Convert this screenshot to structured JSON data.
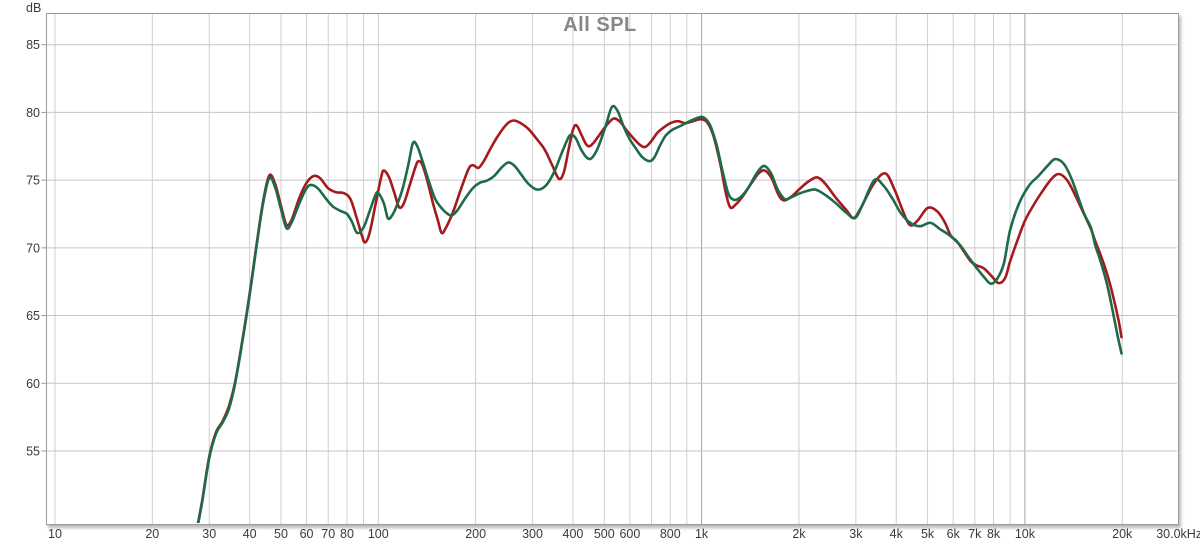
{
  "page": {
    "background": "#ffffff",
    "text_color": "#3a3a3a",
    "title_color": "#878787",
    "border_color": "#9b9b9b"
  },
  "chart_data": {
    "type": "line",
    "title": "All SPL",
    "ylabel": "dB",
    "grid": "on",
    "legend": "none",
    "x_axis": {
      "scale": "log",
      "unit": "Hz",
      "range_hz": [
        9.4,
        30000
      ],
      "labeled_ticks": [
        [
          10,
          "10"
        ],
        [
          20,
          "20"
        ],
        [
          30,
          "30"
        ],
        [
          40,
          "40"
        ],
        [
          50,
          "50"
        ],
        [
          60,
          "60"
        ],
        [
          70,
          "70"
        ],
        [
          80,
          "80"
        ],
        [
          100,
          "100"
        ],
        [
          200,
          "200"
        ],
        [
          300,
          "300"
        ],
        [
          400,
          "400"
        ],
        [
          500,
          "500"
        ],
        [
          600,
          "600"
        ],
        [
          800,
          "800"
        ],
        [
          1000,
          "1k"
        ],
        [
          2000,
          "2k"
        ],
        [
          3000,
          "3k"
        ],
        [
          4000,
          "4k"
        ],
        [
          5000,
          "5k"
        ],
        [
          6000,
          "6k"
        ],
        [
          7000,
          "7k"
        ],
        [
          8000,
          "8k"
        ],
        [
          10000,
          "10k"
        ],
        [
          20000,
          "20k"
        ],
        [
          30000,
          "30.0kHz"
        ]
      ],
      "unlabeled_gridlines": [
        90,
        700,
        900,
        9000
      ],
      "emphasized_gridlines": [
        1000,
        10000
      ],
      "grid_color": "#cfcfcf",
      "emphasized_grid_color": "#a3a3a3"
    },
    "y_axis": {
      "unit": "dB",
      "ticks": [
        85,
        80,
        75,
        70,
        65,
        60,
        55
      ],
      "step": 5,
      "range_db": [
        49.6,
        87.3
      ],
      "grid_color": "#c6c6c6"
    },
    "series": [
      {
        "id": "red-trace",
        "color": "#a51a1e",
        "points": [
          [
            27,
            48.3
          ],
          [
            28.5,
            51.3
          ],
          [
            30,
            54.6
          ],
          [
            31.5,
            56.4
          ],
          [
            33,
            57.2
          ],
          [
            34.5,
            58.3
          ],
          [
            36,
            60.0
          ],
          [
            38,
            63.2
          ],
          [
            40,
            66.6
          ],
          [
            42,
            70.2
          ],
          [
            44,
            73.4
          ],
          [
            46,
            75.35
          ],
          [
            48,
            74.7
          ],
          [
            50,
            73.1
          ],
          [
            52,
            71.7
          ],
          [
            54,
            72.1
          ],
          [
            57,
            73.7
          ],
          [
            60,
            74.8
          ],
          [
            63,
            75.3
          ],
          [
            66,
            75.15
          ],
          [
            70,
            74.4
          ],
          [
            74,
            74.1
          ],
          [
            78,
            74.05
          ],
          [
            82,
            73.6
          ],
          [
            86,
            72.1
          ],
          [
            89,
            70.9
          ],
          [
            91,
            70.4
          ],
          [
            94,
            71.1
          ],
          [
            98,
            73.2
          ],
          [
            102,
            75.2
          ],
          [
            104,
            75.7
          ],
          [
            108,
            75.2
          ],
          [
            112,
            74.1
          ],
          [
            116,
            73.0
          ],
          [
            120,
            73.3
          ],
          [
            125,
            74.6
          ],
          [
            130,
            75.9
          ],
          [
            133,
            76.4
          ],
          [
            137,
            76.1
          ],
          [
            142,
            74.9
          ],
          [
            148,
            73.2
          ],
          [
            153,
            72.0
          ],
          [
            157,
            71.1
          ],
          [
            162,
            71.5
          ],
          [
            170,
            72.6
          ],
          [
            180,
            74.3
          ],
          [
            190,
            75.8
          ],
          [
            196,
            76.1
          ],
          [
            204,
            75.9
          ],
          [
            212,
            76.4
          ],
          [
            222,
            77.3
          ],
          [
            235,
            78.3
          ],
          [
            250,
            79.15
          ],
          [
            262,
            79.4
          ],
          [
            276,
            79.2
          ],
          [
            292,
            78.75
          ],
          [
            310,
            78.0
          ],
          [
            328,
            77.2
          ],
          [
            345,
            76.1
          ],
          [
            362,
            75.1
          ],
          [
            375,
            75.6
          ],
          [
            388,
            77.3
          ],
          [
            400,
            78.7
          ],
          [
            410,
            79.05
          ],
          [
            424,
            78.4
          ],
          [
            438,
            77.7
          ],
          [
            450,
            77.5
          ],
          [
            465,
            77.8
          ],
          [
            485,
            78.4
          ],
          [
            510,
            79.1
          ],
          [
            535,
            79.55
          ],
          [
            560,
            79.3
          ],
          [
            585,
            78.7
          ],
          [
            615,
            78.1
          ],
          [
            645,
            77.6
          ],
          [
            670,
            77.45
          ],
          [
            700,
            77.9
          ],
          [
            730,
            78.5
          ],
          [
            765,
            78.9
          ],
          [
            800,
            79.2
          ],
          [
            845,
            79.35
          ],
          [
            890,
            79.2
          ],
          [
            940,
            79.35
          ],
          [
            1000,
            79.5
          ],
          [
            1045,
            79.2
          ],
          [
            1090,
            78.2
          ],
          [
            1140,
            76.3
          ],
          [
            1185,
            74.2
          ],
          [
            1225,
            73.0
          ],
          [
            1275,
            73.2
          ],
          [
            1340,
            73.8
          ],
          [
            1420,
            74.7
          ],
          [
            1500,
            75.5
          ],
          [
            1570,
            75.7
          ],
          [
            1650,
            75.1
          ],
          [
            1730,
            73.9
          ],
          [
            1800,
            73.5
          ],
          [
            1900,
            73.8
          ],
          [
            2000,
            74.3
          ],
          [
            2140,
            74.9
          ],
          [
            2280,
            75.2
          ],
          [
            2420,
            74.7
          ],
          [
            2600,
            73.7
          ],
          [
            2800,
            72.8
          ],
          [
            2950,
            72.2
          ],
          [
            3100,
            72.9
          ],
          [
            3400,
            74.7
          ],
          [
            3700,
            75.5
          ],
          [
            3950,
            74.3
          ],
          [
            4150,
            73.0
          ],
          [
            4400,
            71.7
          ],
          [
            4650,
            72.0
          ],
          [
            5000,
            72.95
          ],
          [
            5350,
            72.7
          ],
          [
            5650,
            71.9
          ],
          [
            5900,
            70.9
          ],
          [
            6150,
            70.5
          ],
          [
            6450,
            69.8
          ],
          [
            6800,
            69.0
          ],
          [
            7100,
            68.7
          ],
          [
            7450,
            68.5
          ],
          [
            7900,
            67.9
          ],
          [
            8300,
            67.4
          ],
          [
            8700,
            67.8
          ],
          [
            9000,
            69.0
          ],
          [
            9500,
            70.6
          ],
          [
            10000,
            72.0
          ],
          [
            10600,
            73.1
          ],
          [
            11200,
            74.0
          ],
          [
            12000,
            75.0
          ],
          [
            12700,
            75.45
          ],
          [
            13500,
            75.0
          ],
          [
            14300,
            73.9
          ],
          [
            15300,
            72.4
          ],
          [
            16000,
            71.4
          ],
          [
            16500,
            70.5
          ],
          [
            17200,
            69.4
          ],
          [
            18000,
            68.0
          ],
          [
            18800,
            66.3
          ],
          [
            19500,
            64.6
          ],
          [
            19900,
            63.4
          ]
        ]
      },
      {
        "id": "green-trace",
        "color": "#1e6b4a",
        "points": [
          [
            27,
            48.2
          ],
          [
            28.5,
            51.2
          ],
          [
            30,
            54.5
          ],
          [
            31.5,
            56.3
          ],
          [
            33,
            57.1
          ],
          [
            34.5,
            58.1
          ],
          [
            36,
            59.9
          ],
          [
            38,
            63.1
          ],
          [
            40,
            66.5
          ],
          [
            42,
            70.1
          ],
          [
            44,
            73.25
          ],
          [
            46,
            75.15
          ],
          [
            48,
            74.45
          ],
          [
            50,
            72.85
          ],
          [
            52,
            71.45
          ],
          [
            54,
            71.9
          ],
          [
            57,
            73.3
          ],
          [
            60,
            74.4
          ],
          [
            62,
            74.65
          ],
          [
            65,
            74.4
          ],
          [
            68,
            73.8
          ],
          [
            72,
            73.1
          ],
          [
            76,
            72.75
          ],
          [
            80,
            72.5
          ],
          [
            83,
            71.9
          ],
          [
            86,
            71.1
          ],
          [
            90,
            71.5
          ],
          [
            94,
            72.7
          ],
          [
            98,
            73.9
          ],
          [
            100,
            74.05
          ],
          [
            104,
            73.3
          ],
          [
            107,
            72.2
          ],
          [
            110,
            72.35
          ],
          [
            114,
            73.1
          ],
          [
            119,
            74.4
          ],
          [
            124,
            76.2
          ],
          [
            128,
            77.75
          ],
          [
            132,
            77.5
          ],
          [
            137,
            76.4
          ],
          [
            143,
            75.0
          ],
          [
            150,
            73.6
          ],
          [
            158,
            72.85
          ],
          [
            164,
            72.5
          ],
          [
            169,
            72.4
          ],
          [
            176,
            72.8
          ],
          [
            185,
            73.6
          ],
          [
            196,
            74.4
          ],
          [
            206,
            74.8
          ],
          [
            216,
            74.95
          ],
          [
            228,
            75.3
          ],
          [
            240,
            75.9
          ],
          [
            252,
            76.3
          ],
          [
            264,
            76.05
          ],
          [
            278,
            75.35
          ],
          [
            292,
            74.7
          ],
          [
            310,
            74.3
          ],
          [
            330,
            74.6
          ],
          [
            350,
            75.6
          ],
          [
            368,
            76.9
          ],
          [
            383,
            77.9
          ],
          [
            394,
            78.35
          ],
          [
            408,
            78.1
          ],
          [
            425,
            77.2
          ],
          [
            445,
            76.6
          ],
          [
            460,
            76.7
          ],
          [
            480,
            77.5
          ],
          [
            505,
            79.0
          ],
          [
            528,
            80.4
          ],
          [
            550,
            80.1
          ],
          [
            575,
            78.9
          ],
          [
            600,
            78.0
          ],
          [
            628,
            77.3
          ],
          [
            655,
            76.7
          ],
          [
            690,
            76.4
          ],
          [
            715,
            76.7
          ],
          [
            745,
            77.6
          ],
          [
            775,
            78.3
          ],
          [
            810,
            78.7
          ],
          [
            860,
            79.0
          ],
          [
            910,
            79.3
          ],
          [
            960,
            79.55
          ],
          [
            1010,
            79.65
          ],
          [
            1060,
            79.1
          ],
          [
            1110,
            77.7
          ],
          [
            1160,
            75.7
          ],
          [
            1210,
            74.0
          ],
          [
            1260,
            73.55
          ],
          [
            1320,
            73.75
          ],
          [
            1400,
            74.5
          ],
          [
            1480,
            75.5
          ],
          [
            1560,
            76.05
          ],
          [
            1640,
            75.5
          ],
          [
            1720,
            74.3
          ],
          [
            1810,
            73.6
          ],
          [
            1900,
            73.75
          ],
          [
            2000,
            74.0
          ],
          [
            2120,
            74.2
          ],
          [
            2250,
            74.3
          ],
          [
            2400,
            73.95
          ],
          [
            2600,
            73.3
          ],
          [
            2800,
            72.6
          ],
          [
            2980,
            72.2
          ],
          [
            3150,
            73.2
          ],
          [
            3420,
            75.0
          ],
          [
            3650,
            74.6
          ],
          [
            3900,
            73.6
          ],
          [
            4150,
            72.5
          ],
          [
            4450,
            71.8
          ],
          [
            4750,
            71.6
          ],
          [
            5100,
            71.85
          ],
          [
            5450,
            71.4
          ],
          [
            5900,
            70.85
          ],
          [
            6300,
            70.2
          ],
          [
            6700,
            69.3
          ],
          [
            7100,
            68.5
          ],
          [
            7500,
            67.8
          ],
          [
            7850,
            67.35
          ],
          [
            8200,
            67.7
          ],
          [
            8600,
            68.8
          ],
          [
            9000,
            71.3
          ],
          [
            9600,
            73.3
          ],
          [
            10300,
            74.6
          ],
          [
            11000,
            75.3
          ],
          [
            11800,
            76.1
          ],
          [
            12400,
            76.55
          ],
          [
            13200,
            76.2
          ],
          [
            14000,
            75.0
          ],
          [
            15200,
            72.6
          ],
          [
            16000,
            71.5
          ],
          [
            16500,
            70.2
          ],
          [
            17200,
            68.9
          ],
          [
            18000,
            67.2
          ],
          [
            18700,
            65.3
          ],
          [
            19400,
            63.4
          ],
          [
            19900,
            62.2
          ]
        ]
      }
    ]
  }
}
